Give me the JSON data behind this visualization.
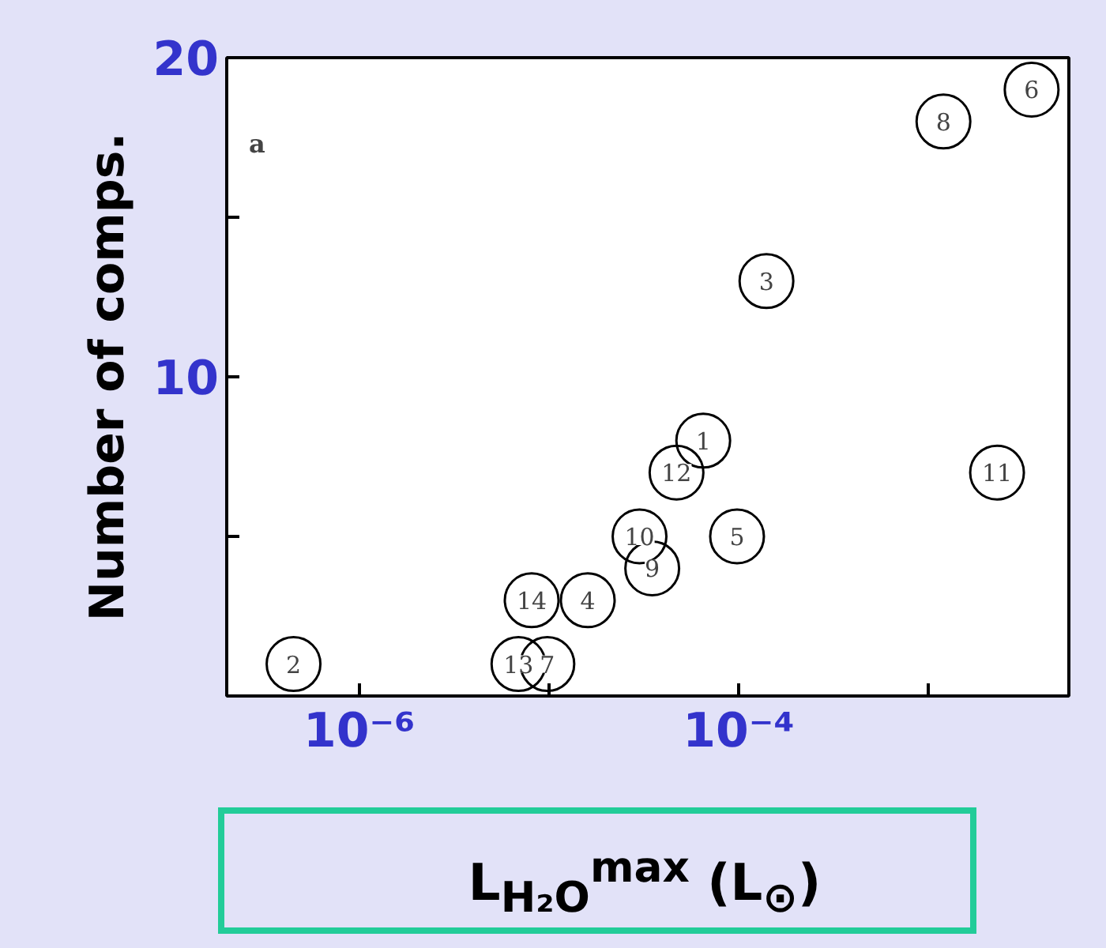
{
  "chart_data": {
    "type": "scatter",
    "xlabel": "L$_{H₂O}$$^{max}$ (L$_{⊙}$)",
    "ylabel": "Number of comps.",
    "log": "x",
    "marker": "circle",
    "grid": false,
    "xlim": [
      2e-07,
      0.0055
    ],
    "ylim": [
      0,
      20
    ],
    "xticks": [
      {
        "value": 1e-06,
        "label": "10⁻⁶"
      },
      {
        "value": 1e-05,
        "label": null
      },
      {
        "value": 0.0001,
        "label": "10⁻⁴"
      },
      {
        "value": 0.001,
        "label": null
      }
    ],
    "yticks": [
      {
        "value": 0,
        "label": null
      },
      {
        "value": 5,
        "label": null
      },
      10,
      {
        "value": 15,
        "label": null
      },
      20
    ],
    "annotations": [
      "a",
      {
        "text": "1",
        "x": 6.5e-05,
        "y": 8
      },
      {
        "text": "2",
        "x": 4.5e-07,
        "y": 1
      },
      {
        "text": "3",
        "x": 0.00014,
        "y": 13
      },
      {
        "text": "4",
        "x": 1.6e-05,
        "y": 3
      },
      {
        "text": "5",
        "x": 9.8e-05,
        "y": 5
      },
      {
        "text": "6",
        "x": 0.0035,
        "y": 19
      },
      {
        "text": "7",
        "x": 9.8e-06,
        "y": 1
      },
      {
        "text": "8",
        "x": 0.0012,
        "y": 18
      },
      {
        "text": "9",
        "x": 3.5e-05,
        "y": 4
      },
      {
        "text": "10",
        "x": 3e-05,
        "y": 5
      },
      {
        "text": "11",
        "x": 0.0023,
        "y": 7
      },
      {
        "text": "12",
        "x": 4.7e-05,
        "y": 7
      },
      {
        "text": "13",
        "x": 6.9e-06,
        "y": 1
      },
      {
        "text": "14",
        "x": 8.1e-06,
        "y": 3
      }
    ],
    "x": [
      6.5e-05,
      4.5e-07,
      0.00014,
      1.6e-05,
      9.8e-05,
      0.0035,
      9.8e-06,
      0.0012,
      3.5e-05,
      3e-05,
      0.0023,
      4.7e-05,
      6.9e-06,
      8.1e-06
    ],
    "series": [
      {
        "color": "#000000",
        "values": [
          8,
          1,
          13,
          3,
          5,
          19,
          1,
          18,
          4,
          5,
          7,
          7,
          1,
          3
        ]
      }
    ]
  }
}
